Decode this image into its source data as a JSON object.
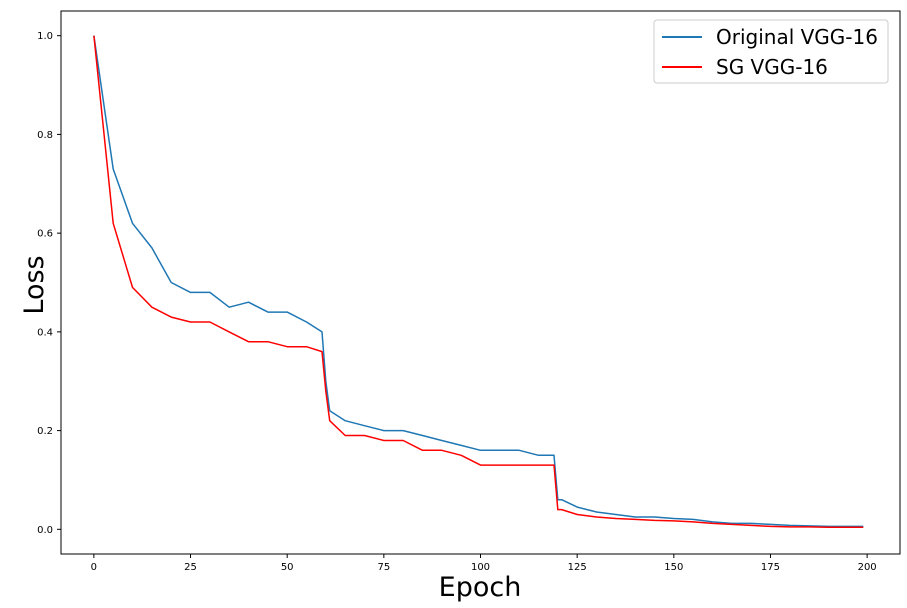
{
  "chart_data": {
    "type": "line",
    "title": "",
    "xlabel": "Epoch",
    "ylabel": "Loss",
    "xlim": [
      -8.5,
      208.5
    ],
    "ylim": [
      -0.05,
      1.05
    ],
    "x_ticks": [
      0,
      25,
      50,
      75,
      100,
      125,
      150,
      175,
      200
    ],
    "y_ticks": [
      0.0,
      0.2,
      0.4,
      0.6,
      0.8,
      1.0
    ],
    "y_tick_labels": [
      "0.0",
      "0.2",
      "0.4",
      "0.6",
      "0.8",
      "1.0"
    ],
    "grid": false,
    "legend_position": "top-right",
    "x": [
      0,
      5,
      10,
      15,
      20,
      25,
      30,
      35,
      40,
      45,
      50,
      55,
      59,
      60,
      61,
      65,
      70,
      75,
      80,
      85,
      90,
      95,
      100,
      105,
      110,
      115,
      119,
      120,
      121,
      125,
      130,
      135,
      140,
      145,
      150,
      155,
      160,
      165,
      170,
      175,
      180,
      185,
      190,
      195,
      199
    ],
    "series": [
      {
        "name": "Original VGG-16",
        "color": "#1f77b4",
        "values": [
          1.0,
          0.73,
          0.62,
          0.57,
          0.5,
          0.48,
          0.48,
          0.45,
          0.46,
          0.44,
          0.44,
          0.42,
          0.4,
          0.3,
          0.24,
          0.22,
          0.21,
          0.2,
          0.2,
          0.19,
          0.18,
          0.17,
          0.16,
          0.16,
          0.16,
          0.15,
          0.15,
          0.06,
          0.06,
          0.045,
          0.035,
          0.03,
          0.025,
          0.025,
          0.022,
          0.02,
          0.015,
          0.012,
          0.012,
          0.01,
          0.008,
          0.007,
          0.006,
          0.006,
          0.006
        ]
      },
      {
        "name": "SG VGG-16",
        "color": "#ff0000",
        "values": [
          1.0,
          0.62,
          0.49,
          0.45,
          0.43,
          0.42,
          0.42,
          0.4,
          0.38,
          0.38,
          0.37,
          0.37,
          0.36,
          0.28,
          0.22,
          0.19,
          0.19,
          0.18,
          0.18,
          0.16,
          0.16,
          0.15,
          0.13,
          0.13,
          0.13,
          0.13,
          0.13,
          0.04,
          0.04,
          0.03,
          0.025,
          0.022,
          0.02,
          0.018,
          0.017,
          0.015,
          0.012,
          0.01,
          0.008,
          0.006,
          0.005,
          0.005,
          0.004,
          0.004,
          0.004
        ]
      }
    ]
  }
}
